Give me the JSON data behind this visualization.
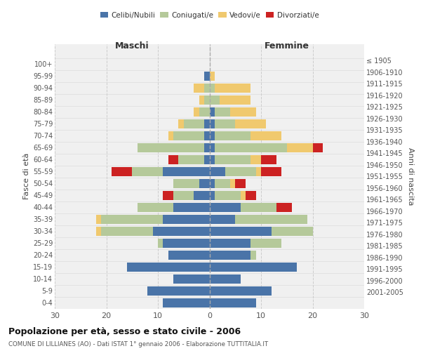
{
  "age_groups": [
    "0-4",
    "5-9",
    "10-14",
    "15-19",
    "20-24",
    "25-29",
    "30-34",
    "35-39",
    "40-44",
    "45-49",
    "50-54",
    "55-59",
    "60-64",
    "65-69",
    "70-74",
    "75-79",
    "80-84",
    "85-89",
    "90-94",
    "95-99",
    "100+"
  ],
  "birth_years": [
    "2001-2005",
    "1996-2000",
    "1991-1995",
    "1986-1990",
    "1981-1985",
    "1976-1980",
    "1971-1975",
    "1966-1970",
    "1961-1965",
    "1956-1960",
    "1951-1955",
    "1946-1950",
    "1941-1945",
    "1936-1940",
    "1931-1935",
    "1926-1930",
    "1921-1925",
    "1916-1920",
    "1911-1915",
    "1906-1910",
    "≤ 1905"
  ],
  "males": {
    "celibi": [
      9,
      12,
      7,
      16,
      8,
      9,
      11,
      9,
      7,
      3,
      2,
      9,
      1,
      1,
      1,
      1,
      0,
      0,
      0,
      1,
      0
    ],
    "coniugati": [
      0,
      0,
      0,
      0,
      0,
      1,
      10,
      12,
      7,
      4,
      5,
      6,
      5,
      13,
      6,
      4,
      2,
      1,
      1,
      0,
      0
    ],
    "vedovi": [
      0,
      0,
      0,
      0,
      0,
      0,
      1,
      1,
      0,
      0,
      0,
      0,
      0,
      0,
      1,
      1,
      1,
      1,
      2,
      0,
      0
    ],
    "divorziati": [
      0,
      0,
      0,
      0,
      0,
      0,
      0,
      0,
      0,
      2,
      0,
      4,
      2,
      0,
      0,
      0,
      0,
      0,
      0,
      0,
      0
    ]
  },
  "females": {
    "nubili": [
      9,
      12,
      6,
      17,
      8,
      8,
      12,
      5,
      6,
      1,
      1,
      3,
      1,
      1,
      1,
      1,
      1,
      0,
      0,
      0,
      0
    ],
    "coniugate": [
      0,
      0,
      0,
      0,
      1,
      6,
      8,
      14,
      7,
      5,
      3,
      6,
      7,
      14,
      7,
      4,
      3,
      2,
      1,
      0,
      0
    ],
    "vedove": [
      0,
      0,
      0,
      0,
      0,
      0,
      0,
      0,
      0,
      1,
      1,
      1,
      2,
      5,
      6,
      6,
      5,
      6,
      7,
      1,
      0
    ],
    "divorziate": [
      0,
      0,
      0,
      0,
      0,
      0,
      0,
      0,
      3,
      2,
      2,
      4,
      3,
      2,
      0,
      0,
      0,
      0,
      0,
      0,
      0
    ]
  },
  "colors": {
    "celibi_nubili": "#4a74a8",
    "coniugati": "#b5c99a",
    "vedovi": "#f0c96e",
    "divorziati": "#cc2222"
  },
  "title": "Popolazione per età, sesso e stato civile - 2006",
  "subtitle": "COMUNE DI LILLIANES (AO) - Dati ISTAT 1° gennaio 2006 - Elaborazione TUTTITALIA.IT",
  "xlabel_left": "Maschi",
  "xlabel_right": "Femmine",
  "ylabel_left": "Fasce di età",
  "ylabel_right": "Anni di nascita",
  "xlim": 30,
  "background_color": "#f0f0f0",
  "plot_background": "#ffffff"
}
